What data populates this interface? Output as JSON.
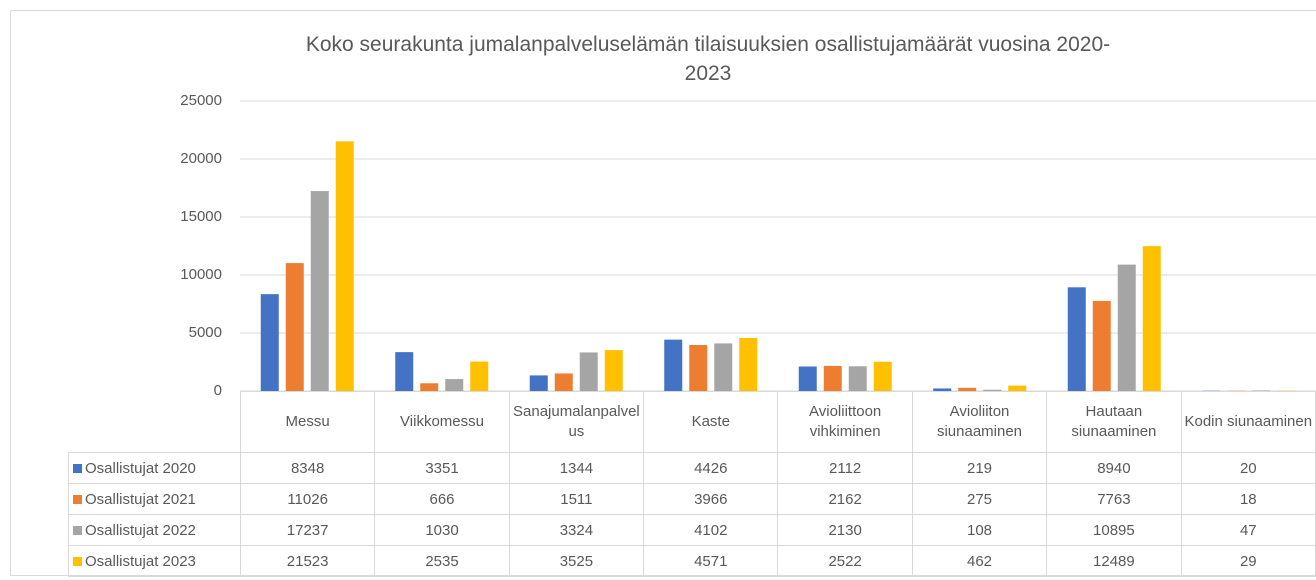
{
  "chart_data": {
    "type": "bar",
    "title": "Koko seurakunta jumalanpalveluselämän tilaisuuksien osallistujamäärät vuosina 2020-2023",
    "categories": [
      "Messu",
      "Viikkomessu",
      "Sanajumalanpalvelus",
      "Kaste",
      "Avioliittoon vihkiminen",
      "Avioliiton siunaaminen",
      "Hautaan siunaaminen",
      "Kodin siunaaminen"
    ],
    "series": [
      {
        "name": "Osallistujat 2020",
        "color": "#4472c4",
        "values": [
          8348,
          3351,
          1344,
          4426,
          2112,
          219,
          8940,
          20
        ]
      },
      {
        "name": "Osallistujat 2021",
        "color": "#ed7d31",
        "values": [
          11026,
          666,
          1511,
          3966,
          2162,
          275,
          7763,
          18
        ]
      },
      {
        "name": "Osallistujat 2022",
        "color": "#a5a5a5",
        "values": [
          17237,
          1030,
          3324,
          4102,
          2130,
          108,
          10895,
          47
        ]
      },
      {
        "name": "Osallistujat 2023",
        "color": "#ffc000",
        "values": [
          21523,
          2535,
          3525,
          4571,
          2522,
          462,
          12489,
          29
        ]
      }
    ],
    "ylim": [
      0,
      25000
    ],
    "yticks": [
      0,
      5000,
      10000,
      15000,
      20000,
      25000
    ],
    "grid": true
  }
}
